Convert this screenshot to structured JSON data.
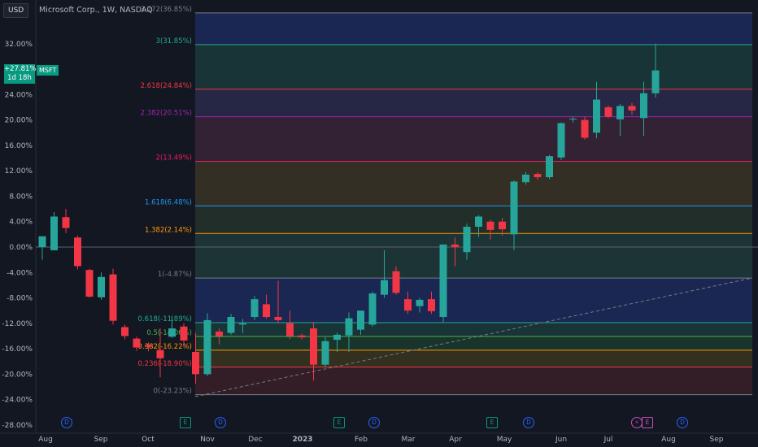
{
  "header": {
    "currency": "USD",
    "symbol_title": "Microsoft Corp., 1W, NASDAQ"
  },
  "price_tag": {
    "change": "+27.81%",
    "countdown": "1d 18h",
    "symbol": "MSFT"
  },
  "colors": {
    "background": "#131722",
    "up": "#26a69a",
    "down": "#f23645",
    "text": "#b2b5be"
  },
  "y_axis": {
    "labels": [
      "32.00%",
      "28.00%",
      "24.00%",
      "20.00%",
      "16.00%",
      "12.00%",
      "8.00%",
      "4.00%",
      "0.00%",
      "-4.00%",
      "-8.00%",
      "-12.00%",
      "-16.00%",
      "-20.00%",
      "-24.00%",
      "-28.00%"
    ]
  },
  "x_axis": {
    "labels": [
      "Aug",
      "Sep",
      "Oct",
      "Nov",
      "Dec",
      "2023",
      "Feb",
      "Mar",
      "Apr",
      "May",
      "Jun",
      "Jul",
      "Aug",
      "Sep"
    ]
  },
  "fib_extension": {
    "levels": [
      {
        "label": "3.272(36.85%)",
        "value": 36.85,
        "color": "#787b86"
      },
      {
        "label": "3(31.85%)",
        "value": 31.85,
        "color": "#22ab94"
      },
      {
        "label": "2.618(24.84%)",
        "value": 24.84,
        "color": "#f23645"
      },
      {
        "label": "2.382(20.51%)",
        "value": 20.51,
        "color": "#9c27b0"
      },
      {
        "label": "2(13.49%)",
        "value": 13.49,
        "color": "#e91e63"
      },
      {
        "label": "1.618(6.48%)",
        "value": 6.48,
        "color": "#2196f3"
      },
      {
        "label": "1.382(2.14%)",
        "value": 2.14,
        "color": "#ff9800"
      },
      {
        "label": "1(-4.87%)",
        "value": -4.87,
        "color": "#787b86"
      },
      {
        "label": "0.618(-11.89%)",
        "value": -11.89,
        "color": "#22ab94"
      },
      {
        "label": "0.5(-14.06%)",
        "value": -14.06,
        "color": "#4caf50"
      },
      {
        "label": "0.382(-16.22%)",
        "value": -16.22,
        "color": "#ff9800"
      },
      {
        "label": "0.236(-18.90%)",
        "value": -18.9,
        "color": "#f23645"
      },
      {
        "label": "0(-23.23%)",
        "value": -23.23,
        "color": "#787b86"
      }
    ]
  },
  "events": [
    {
      "type": "D",
      "label": "D"
    },
    {
      "type": "E",
      "label": "E"
    },
    {
      "type": "D",
      "label": "D"
    },
    {
      "type": "E",
      "label": "E"
    },
    {
      "type": "D",
      "label": "D"
    },
    {
      "type": "E",
      "label": "E"
    },
    {
      "type": "D",
      "label": "D"
    },
    {
      "type": "S",
      "label": "⚡"
    },
    {
      "type": "E2",
      "label": "E"
    },
    {
      "type": "D",
      "label": "D"
    }
  ],
  "chart_data": {
    "type": "candlestick",
    "unit": "%",
    "ylim": [
      -28,
      36
    ],
    "candles": [
      {
        "o": 0.0,
        "h": 1.5,
        "l": -2.0,
        "c": 1.7
      },
      {
        "o": -0.5,
        "h": 5.5,
        "l": -0.3,
        "c": 4.8
      },
      {
        "o": 4.7,
        "h": 6.0,
        "l": 2.2,
        "c": 3.0
      },
      {
        "o": 1.5,
        "h": 1.8,
        "l": -3.5,
        "c": -3.0
      },
      {
        "o": -3.6,
        "h": -3.4,
        "l": -8.0,
        "c": -7.8
      },
      {
        "o": -7.9,
        "h": -4.0,
        "l": -8.3,
        "c": -4.7
      },
      {
        "o": -4.3,
        "h": -3.4,
        "l": -12.2,
        "c": -11.6
      },
      {
        "o": -12.6,
        "h": -12.2,
        "l": -14.5,
        "c": -14.0
      },
      {
        "o": -14.4,
        "h": -14.1,
        "l": -16.3,
        "c": -15.8
      },
      {
        "o": -15.4,
        "h": -15.0,
        "l": -16.4,
        "c": -15.7
      },
      {
        "o": -16.2,
        "h": -12.8,
        "l": -20.5,
        "c": -17.5
      },
      {
        "o": -14.1,
        "h": -10.8,
        "l": -14.3,
        "c": -12.8
      },
      {
        "o": -12.5,
        "h": -12.0,
        "l": -15.8,
        "c": -14.7
      },
      {
        "o": -16.5,
        "h": -13.5,
        "l": -21.5,
        "c": -20.0
      },
      {
        "o": -20.0,
        "h": -10.4,
        "l": -20.3,
        "c": -11.5
      },
      {
        "o": -13.3,
        "h": -12.8,
        "l": -15.3,
        "c": -14.0
      },
      {
        "o": -13.5,
        "h": -10.5,
        "l": -13.8,
        "c": -11.0
      },
      {
        "o": -12.2,
        "h": -11.3,
        "l": -13.5,
        "c": -12.0
      },
      {
        "o": -11.0,
        "h": -7.7,
        "l": -11.5,
        "c": -8.2
      },
      {
        "o": -9.0,
        "h": -7.5,
        "l": -11.3,
        "c": -11.0
      },
      {
        "o": -11.0,
        "h": -5.3,
        "l": -12.0,
        "c": -11.5
      },
      {
        "o": -12.0,
        "h": -10.0,
        "l": -14.5,
        "c": -14.0
      },
      {
        "o": -13.9,
        "h": -13.6,
        "l": -14.5,
        "c": -14.2
      },
      {
        "o": -12.8,
        "h": -11.8,
        "l": -21.0,
        "c": -18.5
      },
      {
        "o": -18.5,
        "h": -14.2,
        "l": -18.9,
        "c": -14.8
      },
      {
        "o": -14.6,
        "h": -13.5,
        "l": -16.5,
        "c": -13.8
      },
      {
        "o": -13.9,
        "h": -10.3,
        "l": -16.5,
        "c": -11.2
      },
      {
        "o": -13.0,
        "h": -10.0,
        "l": -13.8,
        "c": -10.0
      },
      {
        "o": -12.2,
        "h": -7.0,
        "l": -12.5,
        "c": -7.3
      },
      {
        "o": -7.5,
        "h": -0.5,
        "l": -8.0,
        "c": -5.2
      },
      {
        "o": -3.8,
        "h": -3.0,
        "l": -7.5,
        "c": -7.2
      },
      {
        "o": -8.2,
        "h": -7.0,
        "l": -10.5,
        "c": -10.0
      },
      {
        "o": -9.3,
        "h": -8.0,
        "l": -10.3,
        "c": -8.3
      },
      {
        "o": -8.2,
        "h": -7.0,
        "l": -10.5,
        "c": -10.1
      },
      {
        "o": -11.0,
        "h": 0.3,
        "l": -11.8,
        "c": 0.4
      },
      {
        "o": 0.4,
        "h": 1.5,
        "l": -3.0,
        "c": 0.0
      },
      {
        "o": -0.8,
        "h": 3.7,
        "l": -2.0,
        "c": 3.2
      },
      {
        "o": 3.2,
        "h": 5.0,
        "l": 1.6,
        "c": 4.8
      },
      {
        "o": 4.0,
        "h": 4.3,
        "l": 1.2,
        "c": 2.7
      },
      {
        "o": 4.0,
        "h": 4.6,
        "l": 1.8,
        "c": 2.8
      },
      {
        "o": 2.0,
        "h": 10.5,
        "l": -0.5,
        "c": 10.3
      },
      {
        "o": 10.2,
        "h": 11.8,
        "l": 9.8,
        "c": 11.4
      },
      {
        "o": 11.5,
        "h": 11.8,
        "l": 10.6,
        "c": 11.0
      },
      {
        "o": 11.0,
        "h": 14.5,
        "l": 10.7,
        "c": 14.3
      },
      {
        "o": 14.1,
        "h": 19.6,
        "l": 13.7,
        "c": 19.5
      },
      {
        "o": 20.2,
        "h": 20.5,
        "l": 19.6,
        "c": 20.2
      },
      {
        "o": 20.0,
        "h": 20.5,
        "l": 16.9,
        "c": 17.2
      },
      {
        "o": 18.0,
        "h": 26.0,
        "l": 17.1,
        "c": 23.2
      },
      {
        "o": 22.0,
        "h": 22.3,
        "l": 20.3,
        "c": 20.5
      },
      {
        "o": 20.1,
        "h": 22.5,
        "l": 17.5,
        "c": 22.2
      },
      {
        "o": 22.2,
        "h": 22.7,
        "l": 20.8,
        "c": 21.5
      },
      {
        "o": 20.3,
        "h": 26.0,
        "l": 17.5,
        "c": 24.2
      },
      {
        "o": 24.2,
        "h": 32.0,
        "l": 23.5,
        "c": 27.8
      }
    ]
  }
}
